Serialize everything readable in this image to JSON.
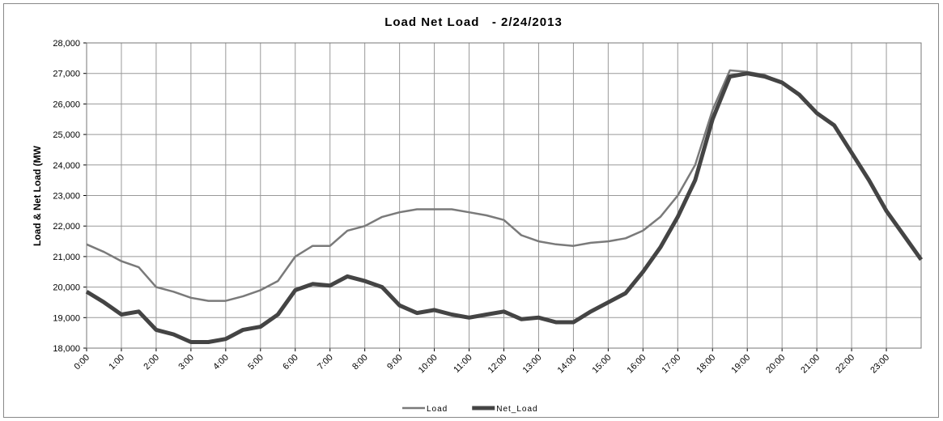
{
  "chart_data": {
    "type": "line",
    "title": "Load Net Load   - 2/24/2013",
    "y_label": "Load & Net Load (MW",
    "x": [
      0,
      0.5,
      1,
      1.5,
      2,
      2.5,
      3,
      3.5,
      4,
      4.5,
      5,
      5.5,
      6,
      6.5,
      7,
      7.5,
      8,
      8.5,
      9,
      9.5,
      10,
      10.5,
      11,
      11.5,
      12,
      12.5,
      13,
      13.5,
      14,
      14.5,
      15,
      15.5,
      16,
      16.5,
      17,
      17.5,
      18,
      18.5,
      19,
      19.5,
      20,
      20.5,
      21,
      21.5,
      22,
      22.5,
      23,
      23.5,
      24
    ],
    "series": [
      {
        "name": "Load",
        "color": "#7a7a7a",
        "width": 2.5,
        "values": [
          21400,
          21150,
          20850,
          20650,
          20000,
          19850,
          19650,
          19550,
          19550,
          19700,
          19900,
          20200,
          21000,
          21350,
          21350,
          21850,
          22000,
          22300,
          22450,
          22550,
          22550,
          22550,
          22450,
          22350,
          22200,
          21700,
          21500,
          21400,
          21350,
          21450,
          21500,
          21600,
          21850,
          22300,
          23000,
          24000,
          25800,
          27100,
          27050,
          26950,
          26700,
          26300,
          25700,
          25300,
          24400,
          23500,
          22500,
          21700,
          20900
        ]
      },
      {
        "name": "Net_Load",
        "color": "#444444",
        "width": 5,
        "values": [
          19850,
          19500,
          19100,
          19200,
          18600,
          18450,
          18200,
          18200,
          18300,
          18600,
          18700,
          19100,
          19900,
          20100,
          20050,
          20350,
          20200,
          20000,
          19400,
          19150,
          19250,
          19100,
          19000,
          19100,
          19200,
          18950,
          19000,
          18850,
          18850,
          19200,
          19500,
          19800,
          20500,
          21300,
          22300,
          23500,
          25500,
          26900,
          27000,
          26900,
          26700,
          26300,
          25700,
          25300,
          24400,
          23500,
          22500,
          21700,
          20900
        ]
      }
    ],
    "xlim": [
      0,
      24
    ],
    "xticks": [
      {
        "value": 0,
        "label": "0:00"
      },
      {
        "value": 1,
        "label": "1:00"
      },
      {
        "value": 2,
        "label": "2:00"
      },
      {
        "value": 3,
        "label": "3:00"
      },
      {
        "value": 4,
        "label": "4:00"
      },
      {
        "value": 5,
        "label": "5:00"
      },
      {
        "value": 6,
        "label": "6:00"
      },
      {
        "value": 7,
        "label": "7:00"
      },
      {
        "value": 8,
        "label": "8:00"
      },
      {
        "value": 9,
        "label": "9:00"
      },
      {
        "value": 10,
        "label": "10:00"
      },
      {
        "value": 11,
        "label": "11:00"
      },
      {
        "value": 12,
        "label": "12:00"
      },
      {
        "value": 13,
        "label": "13:00"
      },
      {
        "value": 14,
        "label": "14:00"
      },
      {
        "value": 15,
        "label": "15:00"
      },
      {
        "value": 16,
        "label": "16:00"
      },
      {
        "value": 17,
        "label": "17:00"
      },
      {
        "value": 18,
        "label": "18:00"
      },
      {
        "value": 19,
        "label": "19:00"
      },
      {
        "value": 20,
        "label": "20:00"
      },
      {
        "value": 21,
        "label": "21:00"
      },
      {
        "value": 22,
        "label": "22:00"
      },
      {
        "value": 23,
        "label": "23:00"
      }
    ],
    "ylim": [
      18000,
      28000
    ],
    "yticks": [
      {
        "value": 18000,
        "label": "18,000"
      },
      {
        "value": 19000,
        "label": "19,000"
      },
      {
        "value": 20000,
        "label": "20,000"
      },
      {
        "value": 21000,
        "label": "21,000"
      },
      {
        "value": 22000,
        "label": "22,000"
      },
      {
        "value": 23000,
        "label": "23,000"
      },
      {
        "value": 24000,
        "label": "24,000"
      },
      {
        "value": 25000,
        "label": "25,000"
      },
      {
        "value": 26000,
        "label": "26,000"
      },
      {
        "value": 27000,
        "label": "27,000"
      },
      {
        "value": 28000,
        "label": "28,000"
      }
    ],
    "grid": true,
    "legend": "bottom"
  }
}
